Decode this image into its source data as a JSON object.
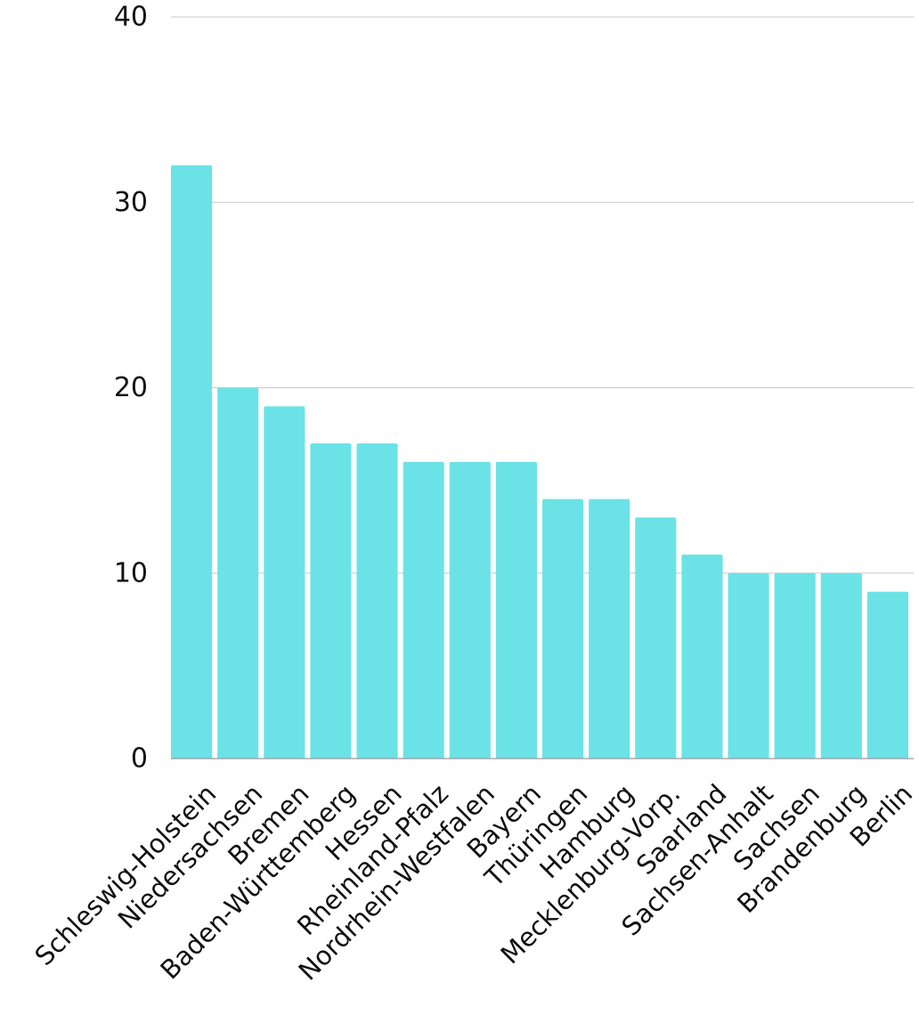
{
  "chart_data": {
    "type": "bar",
    "categories": [
      "Schleswig-Holstein",
      "Niedersachsen",
      "Bremen",
      "Baden-Württemberg",
      "Hessen",
      "Rheinland-Pfalz",
      "Nordrhein-Westfalen",
      "Bayern",
      "Thüringen",
      "Hamburg",
      "Mecklenburg-Vorp.",
      "Saarland",
      "Sachsen-Anhalt",
      "Sachsen",
      "Brandenburg",
      "Berlin"
    ],
    "values": [
      32,
      20,
      19,
      17,
      17,
      16,
      16,
      16,
      14,
      14,
      13,
      11,
      10,
      10,
      10,
      9
    ],
    "title": "",
    "xlabel": "",
    "ylabel": "",
    "ylim": [
      0,
      40
    ],
    "yticks": [
      0,
      10,
      20,
      30,
      40
    ],
    "grid": true,
    "legend": "none",
    "bar_color": "#6be3e6"
  }
}
